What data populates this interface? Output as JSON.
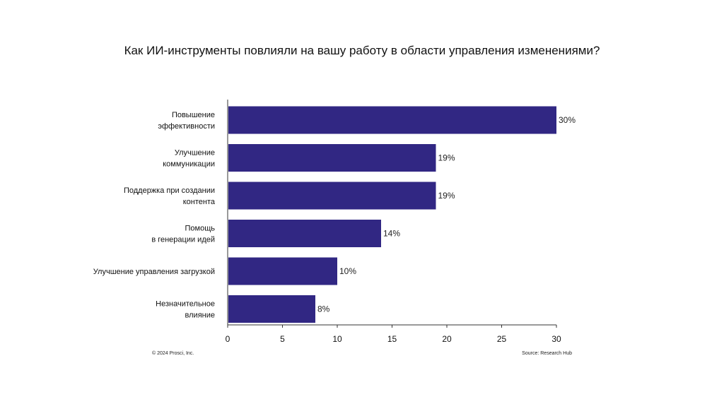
{
  "chart_data": {
    "type": "bar",
    "orientation": "horizontal",
    "title": "Как ИИ-инструменты повлияли на вашу работу в области управления изменениями?",
    "categories": [
      [
        "Повышение",
        "эффективности"
      ],
      [
        "Улучшение",
        "коммуникации"
      ],
      [
        "Поддержка при создании",
        "контента"
      ],
      [
        "Помощь",
        "в генерации идей"
      ],
      [
        "Улучшение управления загрузкой"
      ],
      [
        "Незначительное",
        "влияние"
      ]
    ],
    "values": [
      30,
      19,
      19,
      14,
      10,
      8
    ],
    "value_labels": [
      "30%",
      "19%",
      "19%",
      "14%",
      "10%",
      "8%"
    ],
    "xticks": [
      0,
      5,
      10,
      15,
      20,
      25,
      30
    ],
    "xlim": [
      0,
      30
    ],
    "bar_color": "#312783",
    "grid": false
  },
  "footer": {
    "copyright": "© 2024 Prosci, Inc.",
    "source": "Source: Research Hub"
  }
}
